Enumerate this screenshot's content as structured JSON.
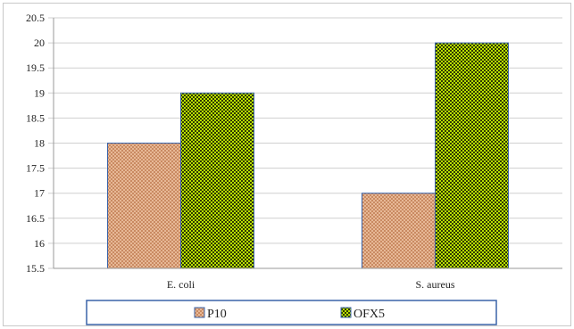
{
  "chart_data": {
    "type": "bar",
    "categories": [
      "E. coli",
      "S. aureus"
    ],
    "series": [
      {
        "name": "P10",
        "values": [
          18,
          17
        ],
        "color": "#d9a27e"
      },
      {
        "name": "OFX5",
        "values": [
          19,
          20
        ],
        "color": "#9acd00"
      }
    ],
    "y_ticks": [
      "15.5",
      "16",
      "16.5",
      "17",
      "17.5",
      "18",
      "18.5",
      "19",
      "19.5",
      "20",
      "20.5"
    ],
    "ylim": [
      15.5,
      20.5
    ],
    "grid": true,
    "legend_position": "bottom"
  }
}
